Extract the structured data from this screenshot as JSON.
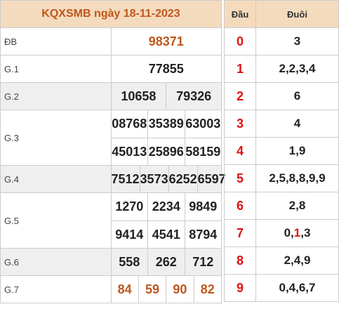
{
  "header": {
    "title": "KQXSMB ngày 18-11-2023",
    "dau_label": "Đầu",
    "duoi_label": "Đuôi"
  },
  "prizes": {
    "db": {
      "label": "ĐB",
      "numbers": [
        "98371"
      ]
    },
    "g1": {
      "label": "G.1",
      "numbers": [
        "77855"
      ]
    },
    "g2": {
      "label": "G.2",
      "numbers": [
        "10658",
        "79326"
      ]
    },
    "g3": {
      "label": "G.3",
      "numbers": [
        "08768",
        "35389",
        "63003",
        "45013",
        "25896",
        "58159"
      ]
    },
    "g4": {
      "label": "G.4",
      "numbers": [
        "7512",
        "3573",
        "6252",
        "6597"
      ]
    },
    "g5": {
      "label": "G.5",
      "numbers": [
        "1270",
        "2234",
        "9849",
        "9414",
        "4541",
        "8794"
      ]
    },
    "g6": {
      "label": "G.6",
      "numbers": [
        "558",
        "262",
        "712"
      ]
    },
    "g7": {
      "label": "G.7",
      "numbers": [
        "84",
        "59",
        "90",
        "82"
      ]
    }
  },
  "loto": [
    {
      "dau": "0",
      "duoi": "3"
    },
    {
      "dau": "1",
      "duoi": "2,2,3,4"
    },
    {
      "dau": "2",
      "duoi": "6"
    },
    {
      "dau": "3",
      "duoi": "4"
    },
    {
      "dau": "4",
      "duoi": "1,9"
    },
    {
      "dau": "5",
      "duoi": "2,5,8,8,9,9"
    },
    {
      "dau": "6",
      "duoi": "2,8"
    },
    {
      "dau": "7",
      "duoi_parts": [
        "0,",
        "1",
        ",3"
      ]
    },
    {
      "dau": "8",
      "duoi": "2,4,9"
    },
    {
      "dau": "9",
      "duoi": "0,4,6,7"
    }
  ],
  "colors": {
    "accent": "#c0561c",
    "dau": "#e01010",
    "header_bg": "#f5dbbd",
    "shade": "#efefef"
  }
}
